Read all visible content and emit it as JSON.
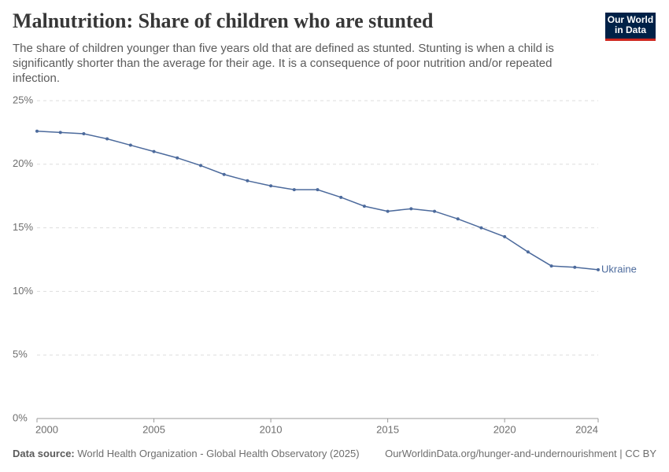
{
  "logo": [
    "Our World",
    "in Data"
  ],
  "chart_data": {
    "type": "line",
    "title": "Malnutrition: Share of children who are stunted",
    "subtitle": "The share of children younger than five years old that are defined as stunted. Stunting is when a child is significantly shorter than the average for their age. It is a consequence of poor nutrition and/or repeated infection.",
    "x": [
      2000,
      2001,
      2002,
      2003,
      2004,
      2005,
      2006,
      2007,
      2008,
      2009,
      2010,
      2011,
      2012,
      2013,
      2014,
      2015,
      2016,
      2017,
      2018,
      2019,
      2020,
      2021,
      2022,
      2023,
      2024
    ],
    "series": [
      {
        "name": "Ukraine",
        "color": "#4c6a9c",
        "values": [
          22.6,
          22.5,
          22.4,
          22.0,
          21.5,
          21.0,
          20.5,
          19.9,
          19.2,
          18.7,
          18.3,
          18.0,
          18.0,
          17.4,
          16.7,
          16.3,
          16.5,
          16.3,
          15.7,
          15.0,
          14.3,
          13.1,
          12.0,
          11.9,
          11.7
        ]
      }
    ],
    "xlim": [
      2000,
      2024
    ],
    "xticks": [
      2000,
      2005,
      2010,
      2015,
      2020,
      2024
    ],
    "ylim": [
      0,
      25
    ],
    "yticks": [
      {
        "value": 0,
        "label": "0%"
      },
      {
        "value": 5,
        "label": "5%"
      },
      {
        "value": 10,
        "label": "10%"
      },
      {
        "value": 15,
        "label": "15%"
      },
      {
        "value": 20,
        "label": "20%"
      },
      {
        "value": 25,
        "label": "25%"
      }
    ],
    "grid": true,
    "source_label": "Data source:",
    "source": "World Health Organization - Global Health Observatory (2025)",
    "url": "OurWorldinData.org/hunger-and-undernourishment | CC BY"
  }
}
